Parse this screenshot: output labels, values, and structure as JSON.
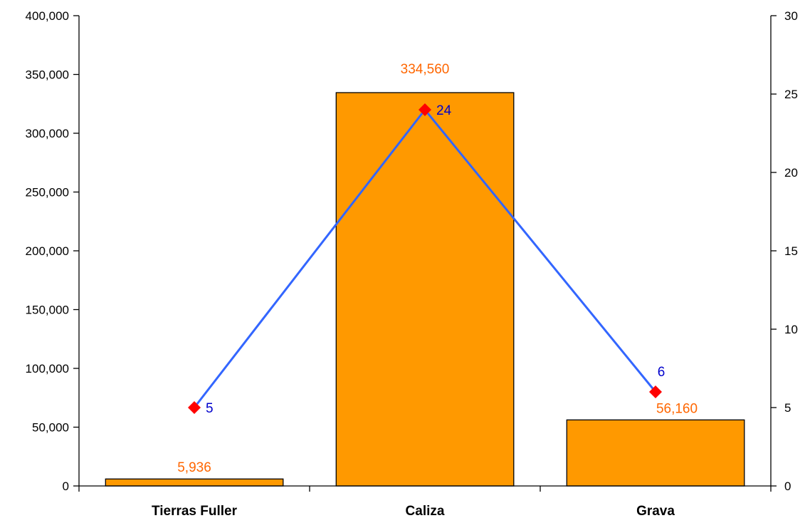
{
  "colors": {
    "bar_fill": "#ff9900",
    "bar_stroke": "#000000",
    "bar_label": "#ff6600",
    "line": "#3366ff",
    "marker": "#ff0000",
    "line_label": "#0000cc",
    "axis": "#000000"
  },
  "chart_data": {
    "type": "bar",
    "title": "",
    "xlabel": "",
    "ylabel": "",
    "categories": [
      "Tierras Fuller",
      "Caliza",
      "Grava"
    ],
    "series": [
      {
        "type": "bar",
        "axis": "left",
        "values": [
          5936,
          334560,
          56160
        ],
        "labels": [
          "5,936",
          "334,560",
          "56,160"
        ]
      },
      {
        "type": "line",
        "axis": "right",
        "marker": "diamond",
        "values": [
          5,
          24,
          6
        ],
        "labels": [
          "5",
          "24",
          "6"
        ]
      }
    ],
    "ylim_left": [
      0,
      400000
    ],
    "yticks_left": [
      0,
      50000,
      100000,
      150000,
      200000,
      250000,
      300000,
      350000,
      400000
    ],
    "ytick_labels_left": [
      "0",
      "50,000",
      "100,000",
      "150,000",
      "200,000",
      "250,000",
      "300,000",
      "350,000",
      "400,000"
    ],
    "ylim_right": [
      0,
      30
    ],
    "yticks_right": [
      0,
      5,
      10,
      15,
      20,
      25,
      30
    ],
    "ytick_labels_right": [
      "0",
      "5",
      "10",
      "15",
      "20",
      "25",
      "30"
    ],
    "grid": false,
    "legend": "none"
  }
}
